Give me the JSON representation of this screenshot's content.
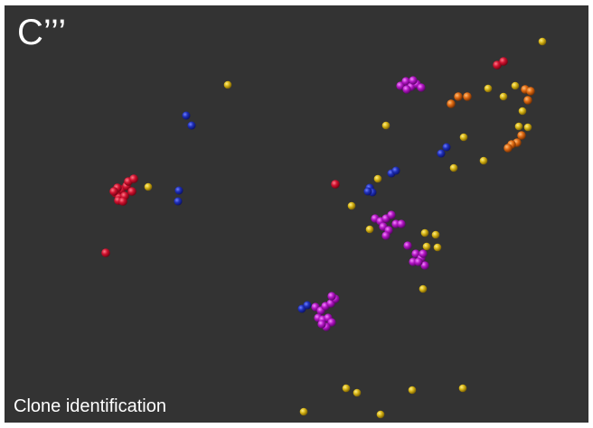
{
  "figure": {
    "panel_label": "C’’’",
    "caption": "Clone identification",
    "background_color": "#333333",
    "cell_colors": {
      "red": "#d0122f",
      "blue": "#1f2fb8",
      "yellow": "#d7b516",
      "magenta": "#b317c4",
      "orange": "#e06a12"
    }
  }
}
